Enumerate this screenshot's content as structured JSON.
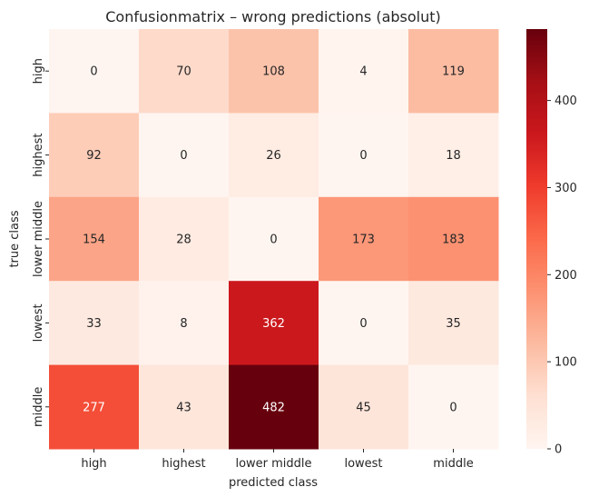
{
  "chart_data": {
    "type": "heatmap",
    "title": "Confusionmatrix – wrong predictions (absolut)",
    "xlabel": "predicted class",
    "ylabel": "true class",
    "x_categories": [
      "high",
      "highest",
      "lower middle",
      "lowest",
      "middle"
    ],
    "y_categories": [
      "high",
      "highest",
      "lower middle",
      "lowest",
      "middle"
    ],
    "values": [
      [
        0,
        70,
        108,
        4,
        119
      ],
      [
        92,
        0,
        26,
        0,
        18
      ],
      [
        154,
        28,
        0,
        173,
        183
      ],
      [
        33,
        8,
        362,
        0,
        35
      ],
      [
        277,
        43,
        482,
        45,
        0
      ]
    ],
    "colorbar": {
      "colormap": "Reds",
      "vmin": 0,
      "vmax": 482,
      "ticks": [
        0,
        100,
        200,
        300,
        400
      ]
    }
  }
}
